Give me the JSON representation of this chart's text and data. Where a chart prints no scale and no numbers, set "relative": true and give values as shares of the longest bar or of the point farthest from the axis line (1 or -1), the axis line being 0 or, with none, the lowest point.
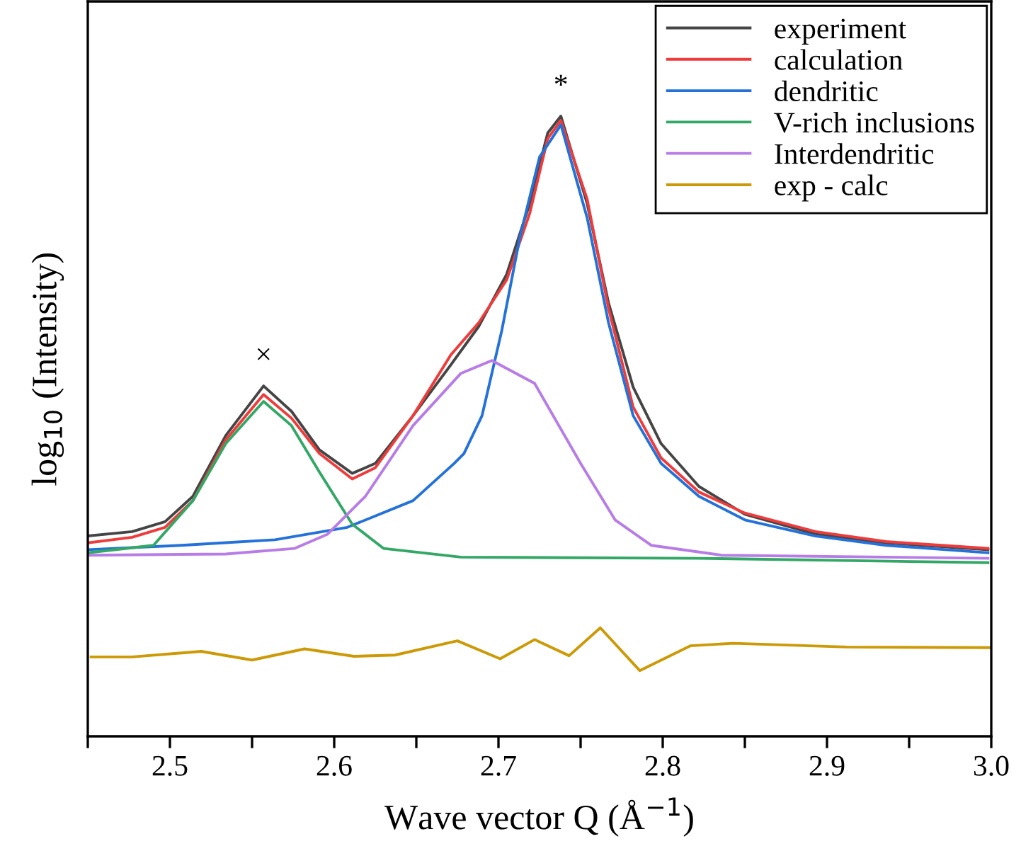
{
  "chart_data": {
    "type": "line",
    "relative": true,
    "xlabel": "Wave vector Q (Å$^{−1}$)",
    "ylabel": "log$_{10}$ (Intensity)",
    "xlim": [
      2.45,
      3.0
    ],
    "xticks": [
      {
        "value": 2.45,
        "label": null
      },
      2.5,
      {
        "value": 2.55,
        "label": null
      },
      2.6,
      {
        "value": 2.65,
        "label": null
      },
      2.7,
      {
        "value": 2.75,
        "label": null
      },
      2.8,
      {
        "value": 2.85,
        "label": null
      },
      2.9,
      {
        "value": 2.95,
        "label": null
      },
      {
        "value": 3.0,
        "label": "3.0"
      }
    ],
    "tick_labels": "x",
    "grid": false,
    "legend": "top right",
    "marker": "none",
    "line_style": "solid",
    "annotations": [
      {
        "text": "×",
        "x": 2.557,
        "y": 0.565
      },
      {
        "text": "*",
        "x": 2.738,
        "y": 1.0
      }
    ],
    "series": [
      {
        "name": "experiment",
        "color": "#454545",
        "x": [
          2.45,
          2.477,
          2.497,
          2.514,
          2.534,
          2.557,
          2.574,
          2.591,
          2.611,
          2.625,
          2.648,
          2.671,
          2.688,
          2.705,
          2.719,
          2.73,
          2.738,
          2.754,
          2.767,
          2.782,
          2.799,
          2.822,
          2.85,
          2.893,
          2.936,
          2.998
        ],
        "values": [
          0.323,
          0.33,
          0.346,
          0.387,
          0.485,
          0.565,
          0.524,
          0.462,
          0.424,
          0.44,
          0.517,
          0.599,
          0.661,
          0.745,
          0.859,
          0.973,
          1.0,
          0.859,
          0.699,
          0.563,
          0.472,
          0.403,
          0.358,
          0.326,
          0.312,
          0.301
        ]
      },
      {
        "name": "calculation",
        "color": "#ee3b3b",
        "x": [
          2.45,
          2.477,
          2.497,
          2.514,
          2.534,
          2.557,
          2.574,
          2.591,
          2.611,
          2.625,
          2.648,
          2.671,
          2.688,
          2.705,
          2.719,
          2.73,
          2.738,
          2.754,
          2.767,
          2.782,
          2.799,
          2.822,
          2.85,
          2.893,
          2.936,
          2.998
        ],
        "values": [
          0.312,
          0.321,
          0.337,
          0.38,
          0.478,
          0.551,
          0.513,
          0.456,
          0.415,
          0.433,
          0.517,
          0.615,
          0.667,
          0.736,
          0.843,
          0.964,
          0.993,
          0.866,
          0.69,
          0.531,
          0.449,
          0.394,
          0.36,
          0.33,
          0.314,
          0.303
        ]
      },
      {
        "name": "dendritic",
        "color": "#2472d9",
        "x": [
          2.45,
          2.507,
          2.564,
          2.608,
          2.648,
          2.673,
          2.679,
          2.69,
          2.702,
          2.713,
          2.725,
          2.738,
          2.754,
          2.767,
          2.782,
          2.799,
          2.822,
          2.85,
          2.893,
          2.936,
          2.998
        ],
        "values": [
          0.301,
          0.308,
          0.317,
          0.337,
          0.38,
          0.44,
          0.456,
          0.517,
          0.654,
          0.804,
          0.934,
          0.986,
          0.836,
          0.667,
          0.517,
          0.44,
          0.387,
          0.349,
          0.323,
          0.308,
          0.296
        ]
      },
      {
        "name": "V-rich inclusions",
        "color": "#33a766",
        "x": [
          2.45,
          2.49,
          2.514,
          2.534,
          2.557,
          2.574,
          2.591,
          2.611,
          2.63,
          2.677,
          2.822,
          2.998
        ],
        "values": [
          0.296,
          0.308,
          0.38,
          0.472,
          0.54,
          0.501,
          0.426,
          0.342,
          0.303,
          0.289,
          0.287,
          0.28
        ]
      },
      {
        "name": "Interdendritic",
        "color": "#b77ce6",
        "x": [
          2.45,
          2.534,
          2.576,
          2.596,
          2.619,
          2.648,
          2.677,
          2.696,
          2.722,
          2.75,
          2.771,
          2.793,
          2.836,
          2.998
        ],
        "values": [
          0.292,
          0.294,
          0.303,
          0.326,
          0.387,
          0.501,
          0.585,
          0.606,
          0.569,
          0.44,
          0.349,
          0.308,
          0.292,
          0.287
        ]
      },
      {
        "name": "exp - calc",
        "color": "#cc9a06",
        "x": [
          2.452,
          2.477,
          2.519,
          2.55,
          2.582,
          2.612,
          2.637,
          2.675,
          2.701,
          2.722,
          2.743,
          2.762,
          2.786,
          2.817,
          2.843,
          2.912,
          2.999
        ],
        "values": [
          0.128,
          0.128,
          0.137,
          0.123,
          0.141,
          0.129,
          0.131,
          0.154,
          0.125,
          0.156,
          0.13,
          0.175,
          0.106,
          0.146,
          0.15,
          0.144,
          0.143
        ]
      }
    ]
  }
}
